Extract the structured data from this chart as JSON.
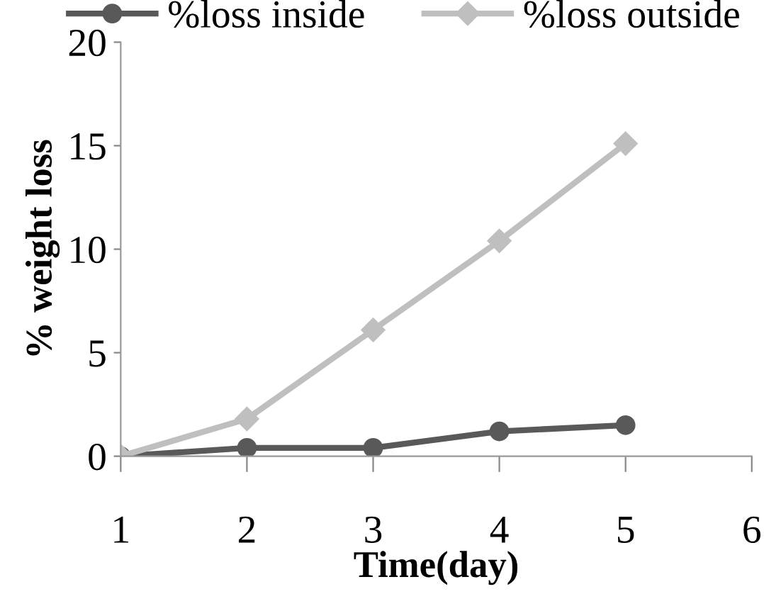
{
  "chart_data": {
    "type": "line",
    "xlabel": "Time(day)",
    "ylabel": "% weight loss",
    "x": [
      1,
      2,
      3,
      4,
      5
    ],
    "series": [
      {
        "name": "%loss inside",
        "color": "#595959",
        "values": [
          0,
          0.4,
          0.4,
          1.2,
          1.5
        ],
        "marker": "circle"
      },
      {
        "name": "%loss outside",
        "color": "#bfbfbf",
        "values": [
          0,
          1.8,
          6.1,
          10.4,
          15.1
        ],
        "marker": "diamond"
      }
    ],
    "xlim": [
      1,
      6
    ],
    "xticks": [
      1,
      2,
      3,
      4,
      5,
      6
    ],
    "ylim": [
      0,
      20
    ],
    "yticks": [
      0,
      5,
      10,
      15,
      20
    ],
    "grid": false,
    "legend": "top",
    "line_style": "solid"
  }
}
